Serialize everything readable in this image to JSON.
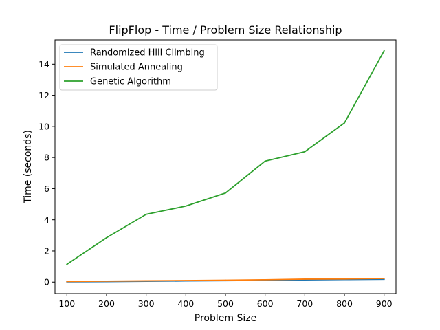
{
  "chart_data": {
    "type": "line",
    "title": "FlipFlop - Time / Problem Size Relationship",
    "xlabel": "Problem Size",
    "ylabel": "Time (seconds)",
    "x": [
      100,
      200,
      300,
      400,
      500,
      600,
      700,
      800,
      900
    ],
    "xlim": [
      70,
      930
    ],
    "ylim": [
      -0.74,
      15.56
    ],
    "xticks": [
      100,
      200,
      300,
      400,
      500,
      600,
      700,
      800,
      900
    ],
    "yticks": [
      0,
      2,
      4,
      6,
      8,
      10,
      12,
      14
    ],
    "grid": false,
    "legend_position": "top-left",
    "series": [
      {
        "name": "Randomized Hill Climbing",
        "color": "#1f77b4",
        "values": [
          0.02,
          0.03,
          0.05,
          0.07,
          0.09,
          0.11,
          0.14,
          0.16,
          0.18
        ]
      },
      {
        "name": "Simulated Annealing",
        "color": "#ff7f0e",
        "values": [
          0.04,
          0.06,
          0.08,
          0.1,
          0.12,
          0.15,
          0.19,
          0.2,
          0.23
        ]
      },
      {
        "name": "Genetic Algorithm",
        "color": "#2ca02c",
        "values": [
          1.14,
          2.85,
          4.35,
          4.88,
          5.72,
          7.77,
          8.37,
          10.22,
          14.86
        ]
      }
    ]
  }
}
